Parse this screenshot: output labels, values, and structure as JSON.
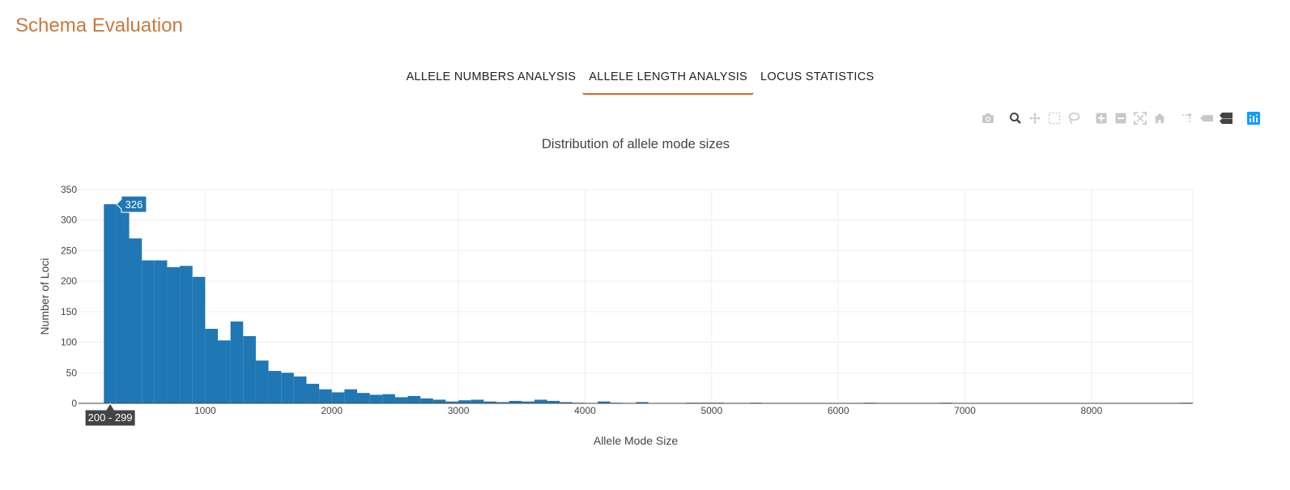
{
  "app": {
    "title": "Schema Evaluation"
  },
  "tabs": [
    {
      "label": "ALLELE NUMBERS ANALYSIS",
      "active": false
    },
    {
      "label": "ALLELE LENGTH ANALYSIS",
      "active": true
    },
    {
      "label": "LOCUS STATISTICS",
      "active": false
    }
  ],
  "modebar": {
    "buttons": [
      "camera-icon",
      "zoom-icon",
      "pan-icon",
      "box-select-icon",
      "lasso-select-icon",
      "zoom-in-icon",
      "zoom-out-icon",
      "autoscale-icon",
      "reset-axes-icon",
      "spike-lines-icon",
      "hover-closest-icon",
      "hover-compare-icon",
      "plotly-logo-icon"
    ]
  },
  "colors": {
    "accent": "#c87a3d",
    "tab_underline": "#d2692a",
    "bar": "#1f77b4",
    "tooltip_dark": "#444444"
  },
  "chart_data": {
    "type": "bar",
    "title": "Distribution of allele mode sizes",
    "xlabel": "Allele Mode Size",
    "ylabel": "Number of Loci",
    "xlim": [
      0,
      8800
    ],
    "ylim": [
      0,
      350
    ],
    "bin_width": 100,
    "bin_start": 0,
    "x_ticks": [
      1000,
      2000,
      3000,
      4000,
      5000,
      6000,
      7000,
      8000
    ],
    "x_tick_labels": [
      "1000",
      "2000",
      "3000",
      "4000",
      "5000",
      "6000",
      "7000",
      "8000"
    ],
    "y_ticks": [
      0,
      50,
      100,
      150,
      200,
      250,
      300,
      350
    ],
    "y_tick_labels": [
      "0",
      "50",
      "100",
      "150",
      "200",
      "250",
      "300",
      "350"
    ],
    "grid": true,
    "values": [
      0,
      0,
      326,
      326,
      270,
      234,
      234,
      223,
      225,
      207,
      122,
      103,
      134,
      110,
      70,
      53,
      50,
      44,
      32,
      23,
      18,
      23,
      17,
      14,
      15,
      10,
      12,
      8,
      6,
      3,
      5,
      6,
      3,
      2,
      4,
      3,
      6,
      4,
      2,
      1,
      0,
      3,
      1,
      0,
      2,
      0,
      0,
      0,
      1,
      1,
      1,
      0,
      0,
      1,
      0,
      0,
      0,
      0,
      0,
      0,
      0,
      0,
      1,
      0,
      0,
      0,
      0,
      0,
      1,
      0,
      0,
      0,
      0,
      0,
      0,
      0,
      0,
      0,
      0,
      0,
      0,
      0,
      0,
      0,
      0,
      0,
      0,
      1
    ],
    "hover": {
      "value_label": "326",
      "range_label": "200 - 299",
      "bin_index": 2
    }
  }
}
